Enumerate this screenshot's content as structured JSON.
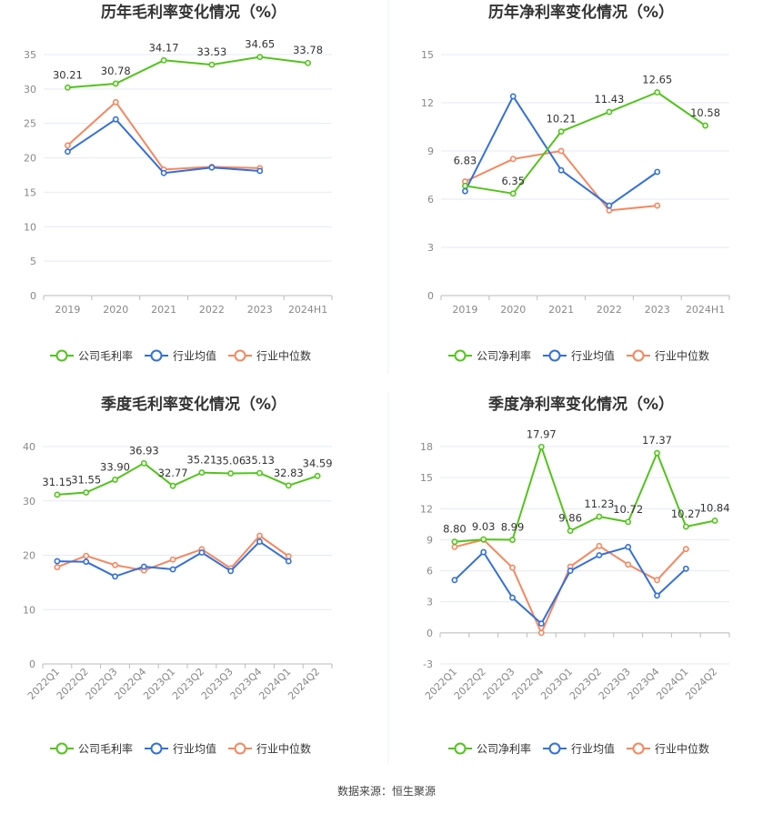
{
  "colors": {
    "company": "#52c41a",
    "industry_avg": "#3470d8",
    "industry_median": "#f5875f",
    "grid": "#e6e9f2",
    "axis": "#bbbbbb"
  },
  "legend_icons": {
    "company": "circle-line-icon",
    "industry_avg": "circle-line-icon",
    "industry_median": "circle-line-icon"
  },
  "source_text": "数据来源：恒生聚源",
  "chart_data": [
    {
      "type": "line",
      "title": "历年毛利率变化情况（%）",
      "categories": [
        "2019",
        "2020",
        "2021",
        "2022",
        "2023",
        "2024H1"
      ],
      "ylim": [
        0,
        35
      ],
      "yticks": [
        0,
        5,
        10,
        15,
        20,
        25,
        30,
        35
      ],
      "rotate_x_labels": false,
      "grid": true,
      "legend_position": "bottom",
      "series": [
        {
          "name": "公司毛利率",
          "key": "company",
          "values": [
            30.21,
            30.78,
            34.17,
            33.53,
            34.65,
            33.78
          ],
          "labels": [
            "30.21",
            "30.78",
            "34.17",
            "33.53",
            "34.65",
            "33.78"
          ]
        },
        {
          "name": "行业均值",
          "key": "industry_avg",
          "values": [
            20.9,
            25.6,
            17.8,
            18.6,
            18.1,
            null
          ]
        },
        {
          "name": "行业中位数",
          "key": "industry_median",
          "values": [
            21.8,
            28.1,
            18.3,
            18.7,
            18.5,
            null
          ]
        }
      ]
    },
    {
      "type": "line",
      "title": "历年净利率变化情况（%）",
      "categories": [
        "2019",
        "2020",
        "2021",
        "2022",
        "2023",
        "2024H1"
      ],
      "ylim": [
        0,
        15
      ],
      "yticks": [
        0,
        3,
        6,
        9,
        12,
        15
      ],
      "rotate_x_labels": false,
      "grid": true,
      "legend_position": "bottom",
      "series": [
        {
          "name": "公司净利率",
          "key": "company",
          "values": [
            6.83,
            6.35,
            10.21,
            11.43,
            12.65,
            10.58
          ],
          "labels": [
            "6.83",
            "6.35",
            "10.21",
            "11.43",
            "12.65",
            "10.58"
          ]
        },
        {
          "name": "行业均值",
          "key": "industry_avg",
          "values": [
            6.5,
            12.4,
            7.8,
            5.6,
            7.7,
            null
          ]
        },
        {
          "name": "行业中位数",
          "key": "industry_median",
          "values": [
            7.1,
            8.5,
            9.0,
            5.3,
            5.6,
            null
          ]
        }
      ]
    },
    {
      "type": "line",
      "title": "季度毛利率变化情况（%）",
      "categories": [
        "2022Q1",
        "2022Q2",
        "2022Q3",
        "2022Q4",
        "2023Q1",
        "2023Q2",
        "2023Q3",
        "2023Q4",
        "2024Q1",
        "2024Q2"
      ],
      "ylim": [
        0,
        40
      ],
      "yticks": [
        0,
        10,
        20,
        30,
        40
      ],
      "rotate_x_labels": true,
      "grid": true,
      "legend_position": "bottom",
      "series": [
        {
          "name": "公司毛利率",
          "key": "company",
          "values": [
            31.15,
            31.55,
            33.9,
            36.93,
            32.77,
            35.21,
            35.06,
            35.13,
            32.83,
            34.59
          ],
          "labels": [
            "31.15",
            "31.55",
            "33.90",
            "36.93",
            "32.77",
            "35.21",
            "35.06",
            "35.13",
            "32.83",
            "34.59"
          ]
        },
        {
          "name": "行业均值",
          "key": "industry_avg",
          "values": [
            18.9,
            18.8,
            16.1,
            17.9,
            17.4,
            20.5,
            17.1,
            22.5,
            18.9,
            null
          ]
        },
        {
          "name": "行业中位数",
          "key": "industry_median",
          "values": [
            17.8,
            19.9,
            18.2,
            17.2,
            19.2,
            21.1,
            17.6,
            23.6,
            19.8,
            null
          ]
        }
      ]
    },
    {
      "type": "line",
      "title": "季度净利率变化情况（%）",
      "categories": [
        "2022Q1",
        "2022Q2",
        "2022Q3",
        "2022Q4",
        "2023Q1",
        "2023Q2",
        "2023Q3",
        "2023Q4",
        "2024Q1",
        "2024Q2"
      ],
      "ylim": [
        -3,
        18
      ],
      "yticks": [
        -3,
        0,
        3,
        6,
        9,
        12,
        15,
        18
      ],
      "rotate_x_labels": true,
      "grid": true,
      "legend_position": "bottom",
      "series": [
        {
          "name": "公司净利率",
          "key": "company",
          "values": [
            8.8,
            9.03,
            8.99,
            17.97,
            9.86,
            11.23,
            10.72,
            17.37,
            10.27,
            10.84
          ],
          "labels": [
            "8.80",
            "9.03",
            "8.99",
            "17.97",
            "9.86",
            "11.23",
            "10.72",
            "17.37",
            "10.27",
            "10.84"
          ]
        },
        {
          "name": "行业均值",
          "key": "industry_avg",
          "values": [
            5.1,
            7.8,
            3.4,
            0.9,
            6.0,
            7.5,
            8.3,
            3.6,
            6.2,
            null
          ]
        },
        {
          "name": "行业中位数",
          "key": "industry_median",
          "values": [
            8.3,
            9.0,
            6.3,
            0.0,
            6.4,
            8.4,
            6.6,
            5.1,
            8.1,
            null
          ]
        }
      ]
    }
  ]
}
